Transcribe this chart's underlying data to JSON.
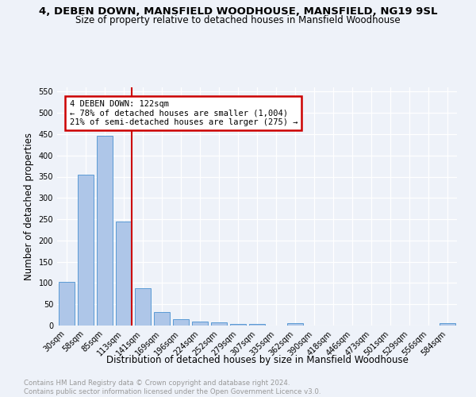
{
  "title": "4, DEBEN DOWN, MANSFIELD WOODHOUSE, MANSFIELD, NG19 9SL",
  "subtitle": "Size of property relative to detached houses in Mansfield Woodhouse",
  "xlabel": "Distribution of detached houses by size in Mansfield Woodhouse",
  "ylabel": "Number of detached properties",
  "footnote": "Contains HM Land Registry data © Crown copyright and database right 2024.\nContains public sector information licensed under the Open Government Licence v3.0.",
  "bar_labels": [
    "30sqm",
    "58sqm",
    "85sqm",
    "113sqm",
    "141sqm",
    "169sqm",
    "196sqm",
    "224sqm",
    "252sqm",
    "279sqm",
    "307sqm",
    "335sqm",
    "362sqm",
    "390sqm",
    "418sqm",
    "446sqm",
    "473sqm",
    "501sqm",
    "529sqm",
    "556sqm",
    "584sqm"
  ],
  "bar_values": [
    102,
    354,
    447,
    245,
    88,
    31,
    15,
    10,
    7,
    4,
    4,
    0,
    6,
    0,
    0,
    0,
    0,
    0,
    0,
    0,
    5
  ],
  "bar_color": "#aec6e8",
  "bar_edge_color": "#5b9bd5",
  "vline_color": "#cc0000",
  "annotation_text": "4 DEBEN DOWN: 122sqm\n← 78% of detached houses are smaller (1,004)\n21% of semi-detached houses are larger (275) →",
  "annotation_box_color": "#cc0000",
  "ylim": [
    0,
    560
  ],
  "yticks": [
    0,
    50,
    100,
    150,
    200,
    250,
    300,
    350,
    400,
    450,
    500,
    550
  ],
  "background_color": "#eef2f9",
  "grid_color": "#ffffff",
  "title_fontsize": 9.5,
  "subtitle_fontsize": 8.5,
  "ylabel_fontsize": 8.5,
  "xlabel_fontsize": 8.5,
  "tick_fontsize": 7.0,
  "annotation_fontsize": 7.5,
  "footnote_fontsize": 6.2
}
